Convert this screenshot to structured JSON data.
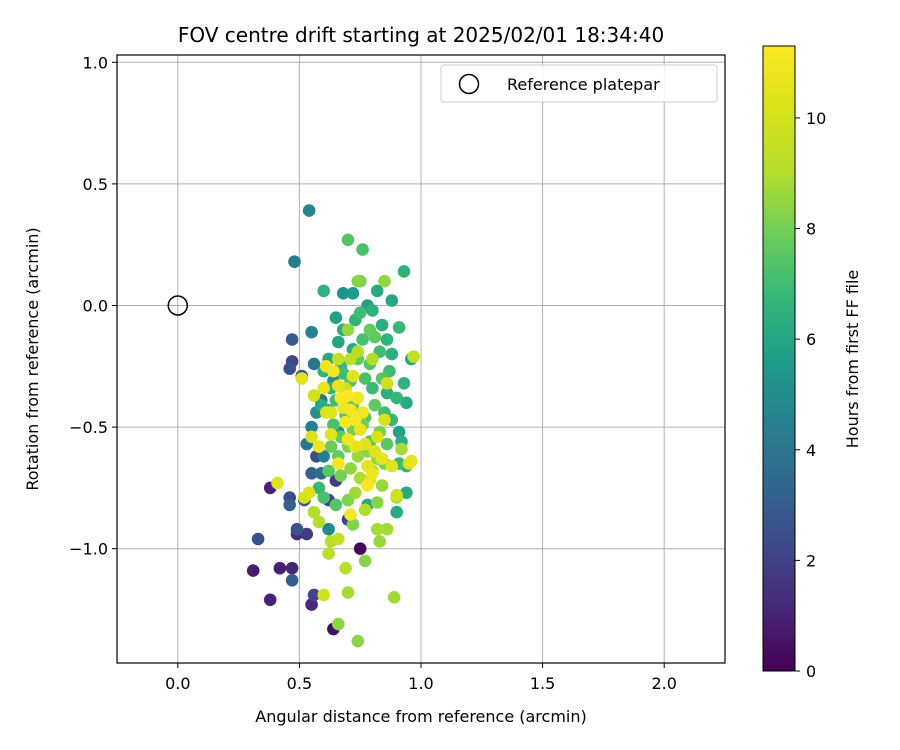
{
  "chart_data": {
    "type": "scatter",
    "title": "FOV centre drift starting at 2025/02/01 18:34:40",
    "xlabel": "Angular distance from reference (arcmin)",
    "ylabel": "Rotation from reference (arcmin)",
    "xlim": [
      -0.25,
      2.25
    ],
    "ylim": [
      -1.47,
      1.03
    ],
    "xticks": [
      0.0,
      0.5,
      1.0,
      1.5,
      2.0
    ],
    "xtick_labels": [
      "0.0",
      "0.5",
      "1.0",
      "1.5",
      "2.0"
    ],
    "yticks": [
      -1.0,
      -0.5,
      0.0,
      0.5,
      1.0
    ],
    "ytick_labels": [
      "−1.0",
      "−0.5",
      "0.0",
      "0.5",
      "1.0"
    ],
    "grid": true,
    "legend": {
      "placement": "upper right",
      "entries": [
        "Reference platepar"
      ]
    },
    "reference_point": {
      "x": 0.0,
      "y": 0.0
    },
    "colorbar": {
      "label": "Hours from first FF file",
      "colormap": "viridis",
      "range": [
        0,
        11.3
      ],
      "ticks": [
        0,
        2,
        4,
        6,
        8,
        10
      ],
      "tick_labels": [
        "0",
        "2",
        "4",
        "6",
        "8",
        "10"
      ]
    },
    "points": [
      [
        0.75,
        -1.0,
        0.2
      ],
      [
        0.64,
        -1.33,
        0.4
      ],
      [
        0.31,
        -1.09,
        0.8
      ],
      [
        0.42,
        -1.08,
        0.9
      ],
      [
        0.47,
        -1.08,
        1.1
      ],
      [
        0.38,
        -0.75,
        1.0
      ],
      [
        0.55,
        -1.23,
        1.2
      ],
      [
        0.38,
        -1.21,
        1.0
      ],
      [
        0.49,
        -0.94,
        1.4
      ],
      [
        0.53,
        -0.94,
        1.8
      ],
      [
        0.33,
        -0.96,
        2.6
      ],
      [
        0.46,
        -0.79,
        2.4
      ],
      [
        0.49,
        -0.92,
        2.6
      ],
      [
        0.56,
        -1.19,
        2.2
      ],
      [
        0.47,
        -1.13,
        3.0
      ],
      [
        0.46,
        -0.82,
        3.1
      ],
      [
        0.52,
        -0.8,
        2.7
      ],
      [
        0.57,
        -0.62,
        2.4
      ],
      [
        0.62,
        -0.8,
        2.1
      ],
      [
        0.65,
        -0.72,
        1.8
      ],
      [
        0.7,
        -0.88,
        2.0
      ],
      [
        0.59,
        -0.69,
        3.5
      ],
      [
        0.55,
        -0.69,
        3.2
      ],
      [
        0.46,
        -0.26,
        2.5
      ],
      [
        0.47,
        -0.23,
        2.2
      ],
      [
        0.47,
        -0.14,
        3.0
      ],
      [
        0.51,
        -0.29,
        2.8
      ],
      [
        0.53,
        -0.57,
        4.0
      ],
      [
        0.55,
        -0.5,
        4.3
      ],
      [
        0.56,
        -0.24,
        4.0
      ],
      [
        0.55,
        -0.11,
        4.5
      ],
      [
        0.48,
        0.18,
        4.2
      ],
      [
        0.54,
        0.39,
        4.6
      ],
      [
        0.59,
        -0.39,
        3.8
      ],
      [
        0.6,
        -0.62,
        4.4
      ],
      [
        0.62,
        -0.92,
        4.7
      ],
      [
        0.57,
        -0.44,
        5.0
      ],
      [
        0.64,
        -0.31,
        5.1
      ],
      [
        0.66,
        -0.52,
        5.3
      ],
      [
        0.68,
        0.05,
        5.2
      ],
      [
        0.72,
        0.05,
        5.5
      ],
      [
        0.6,
        0.06,
        6.5
      ],
      [
        0.7,
        0.27,
        7.4
      ],
      [
        0.76,
        0.23,
        7.2
      ],
      [
        0.74,
        0.1,
        8.3
      ],
      [
        0.75,
        0.1,
        8.0
      ],
      [
        0.85,
        0.1,
        8.5
      ],
      [
        0.93,
        0.14,
        6.6
      ],
      [
        0.82,
        0.06,
        6.2
      ],
      [
        0.8,
        -0.02,
        6.4
      ],
      [
        0.78,
        0.0,
        5.8
      ],
      [
        0.75,
        -0.03,
        7.0
      ],
      [
        0.88,
        0.02,
        6.0
      ],
      [
        0.65,
        -0.05,
        5.8
      ],
      [
        0.68,
        -0.1,
        6.3
      ],
      [
        0.73,
        -0.06,
        6.6
      ],
      [
        0.84,
        -0.08,
        6.3
      ],
      [
        0.91,
        -0.09,
        6.8
      ],
      [
        0.66,
        -0.15,
        5.9
      ],
      [
        0.72,
        -0.18,
        6.2
      ],
      [
        0.76,
        -0.14,
        7.2
      ],
      [
        0.81,
        -0.13,
        7.6
      ],
      [
        0.86,
        -0.14,
        6.6
      ],
      [
        0.88,
        -0.2,
        6.4
      ],
      [
        0.96,
        -0.22,
        6.0
      ],
      [
        0.97,
        -0.21,
        9.4
      ],
      [
        0.7,
        -0.1,
        8.6
      ],
      [
        0.79,
        -0.1,
        7.8
      ],
      [
        0.62,
        -0.22,
        6.0
      ],
      [
        0.67,
        -0.25,
        6.8
      ],
      [
        0.74,
        -0.22,
        7.6
      ],
      [
        0.79,
        -0.24,
        7.4
      ],
      [
        0.83,
        -0.19,
        7.0
      ],
      [
        0.87,
        -0.27,
        7.0
      ],
      [
        0.93,
        -0.32,
        6.5
      ],
      [
        0.6,
        -0.27,
        6.5
      ],
      [
        0.63,
        -0.34,
        6.7
      ],
      [
        0.68,
        -0.28,
        7.0
      ],
      [
        0.71,
        -0.31,
        7.3
      ],
      [
        0.77,
        -0.3,
        7.2
      ],
      [
        0.8,
        -0.34,
        6.9
      ],
      [
        0.84,
        -0.3,
        7.5
      ],
      [
        0.86,
        -0.36,
        6.4
      ],
      [
        0.9,
        -0.38,
        6.7
      ],
      [
        0.94,
        -0.4,
        6.1
      ],
      [
        0.59,
        -0.41,
        6.2
      ],
      [
        0.62,
        -0.43,
        6.6
      ],
      [
        0.65,
        -0.39,
        7.0
      ],
      [
        0.69,
        -0.45,
        7.5
      ],
      [
        0.72,
        -0.41,
        7.8
      ],
      [
        0.77,
        -0.46,
        7.4
      ],
      [
        0.81,
        -0.41,
        7.6
      ],
      [
        0.85,
        -0.44,
        7.0
      ],
      [
        0.88,
        -0.47,
        6.8
      ],
      [
        0.91,
        -0.52,
        5.8
      ],
      [
        0.64,
        -0.49,
        7.2
      ],
      [
        0.67,
        -0.54,
        7.6
      ],
      [
        0.72,
        -0.51,
        8.0
      ],
      [
        0.76,
        -0.49,
        7.9
      ],
      [
        0.79,
        -0.56,
        7.4
      ],
      [
        0.83,
        -0.52,
        8.0
      ],
      [
        0.86,
        -0.57,
        7.5
      ],
      [
        0.92,
        -0.56,
        6.4
      ],
      [
        0.94,
        -0.66,
        6.3
      ],
      [
        0.91,
        -0.65,
        6.9
      ],
      [
        0.63,
        -0.58,
        7.8
      ],
      [
        0.66,
        -0.62,
        7.7
      ],
      [
        0.7,
        -0.58,
        8.2
      ],
      [
        0.74,
        -0.62,
        8.6
      ],
      [
        0.78,
        -0.6,
        8.4
      ],
      [
        0.82,
        -0.63,
        8.5
      ],
      [
        0.85,
        -0.65,
        8.1
      ],
      [
        0.92,
        -0.59,
        8.8
      ],
      [
        0.62,
        -0.68,
        7.5
      ],
      [
        0.67,
        -0.7,
        8.0
      ],
      [
        0.71,
        -0.67,
        8.5
      ],
      [
        0.75,
        -0.71,
        8.9
      ],
      [
        0.8,
        -0.68,
        8.8
      ],
      [
        0.84,
        -0.74,
        8.6
      ],
      [
        0.94,
        -0.77,
        6.1
      ],
      [
        0.9,
        -0.85,
        6.1
      ],
      [
        0.78,
        -0.82,
        6.0
      ],
      [
        0.58,
        -0.75,
        6.8
      ],
      [
        0.6,
        -0.79,
        7.2
      ],
      [
        0.65,
        -0.82,
        7.4
      ],
      [
        0.7,
        -0.8,
        8.2
      ],
      [
        0.73,
        -0.77,
        8.7
      ],
      [
        0.77,
        -0.84,
        9.0
      ],
      [
        0.82,
        -0.81,
        8.3
      ],
      [
        0.9,
        -0.79,
        8.9
      ],
      [
        0.9,
        -0.78,
        9.8
      ],
      [
        0.56,
        -0.85,
        9.0
      ],
      [
        0.58,
        -0.89,
        9.0
      ],
      [
        0.72,
        -0.9,
        8.2
      ],
      [
        0.82,
        -0.92,
        8.8
      ],
      [
        0.86,
        -0.92,
        8.7
      ],
      [
        0.83,
        -0.97,
        8.6
      ],
      [
        0.63,
        -0.97,
        9.1
      ],
      [
        0.62,
        -1.02,
        9.2
      ],
      [
        0.66,
        -0.96,
        9.5
      ],
      [
        0.69,
        -1.08,
        9.1
      ],
      [
        0.77,
        -1.05,
        8.3
      ],
      [
        0.7,
        -1.18,
        8.8
      ],
      [
        0.6,
        -1.19,
        9.9
      ],
      [
        0.66,
        -1.31,
        8.4
      ],
      [
        0.74,
        -1.38,
        8.4
      ],
      [
        0.89,
        -1.2,
        8.7
      ],
      [
        0.41,
        -0.73,
        10.4
      ],
      [
        0.51,
        -0.3,
        10.5
      ],
      [
        0.52,
        -0.79,
        10.0
      ],
      [
        0.54,
        -0.77,
        10.2
      ],
      [
        0.55,
        -0.54,
        10.3
      ],
      [
        0.56,
        -0.37,
        9.9
      ],
      [
        0.58,
        -0.58,
        10.9
      ],
      [
        0.6,
        -0.34,
        10.6
      ],
      [
        0.61,
        -0.25,
        10.8
      ],
      [
        0.63,
        -0.44,
        10.4
      ],
      [
        0.64,
        -0.27,
        11.0
      ],
      [
        0.66,
        -0.33,
        10.7
      ],
      [
        0.67,
        -0.38,
        11.2
      ],
      [
        0.68,
        -0.42,
        10.9
      ],
      [
        0.69,
        -0.48,
        11.1
      ],
      [
        0.7,
        -0.37,
        11.3
      ],
      [
        0.71,
        -0.43,
        11.0
      ],
      [
        0.72,
        -0.29,
        10.5
      ],
      [
        0.73,
        -0.47,
        11.2
      ],
      [
        0.74,
        -0.38,
        10.9
      ],
      [
        0.75,
        -0.51,
        10.7
      ],
      [
        0.76,
        -0.44,
        11.0
      ],
      [
        0.77,
        -0.57,
        10.5
      ],
      [
        0.78,
        -0.66,
        10.6
      ],
      [
        0.79,
        -0.72,
        10.3
      ],
      [
        0.8,
        -0.69,
        10.8
      ],
      [
        0.81,
        -0.6,
        10.4
      ],
      [
        0.82,
        -0.54,
        10.2
      ],
      [
        0.84,
        -0.63,
        10.6
      ],
      [
        0.85,
        -0.47,
        10.1
      ],
      [
        0.86,
        -0.32,
        10.0
      ],
      [
        0.88,
        -0.66,
        10.4
      ],
      [
        0.95,
        -0.65,
        10.2
      ],
      [
        0.96,
        -0.64,
        10.7
      ],
      [
        0.71,
        -0.86,
        11.1
      ],
      [
        0.78,
        -0.74,
        11.2
      ],
      [
        0.66,
        -0.65,
        11.0
      ],
      [
        0.63,
        -0.53,
        10.4
      ],
      [
        0.7,
        -0.55,
        10.9
      ],
      [
        0.73,
        -0.58,
        10.6
      ],
      [
        0.61,
        -0.44,
        10.1
      ],
      [
        0.69,
        -0.34,
        9.7
      ],
      [
        0.66,
        -0.22,
        9.5
      ],
      [
        0.71,
        -0.22,
        9.2
      ],
      [
        0.74,
        -0.19,
        9.1
      ],
      [
        0.8,
        -0.22,
        9.0
      ]
    ]
  }
}
